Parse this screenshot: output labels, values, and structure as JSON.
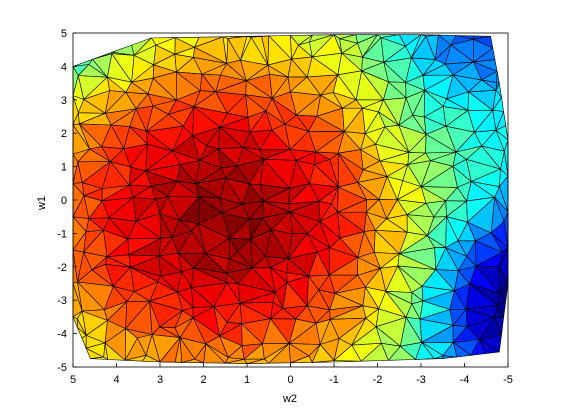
{
  "chart_data": {
    "type": "heatmap",
    "subtype": "triangulated-surface-top-view",
    "title": "",
    "xlabel": "w2",
    "ylabel": "w1",
    "x_reversed": true,
    "xlim": [
      5,
      -5
    ],
    "ylim": [
      -5,
      5
    ],
    "xticks": [
      5,
      4,
      3,
      2,
      1,
      0,
      -1,
      -2,
      -3,
      -4,
      -5
    ],
    "yticks": [
      5,
      4,
      3,
      2,
      1,
      0,
      -1,
      -2,
      -3,
      -4,
      -5
    ],
    "xtick_labels": [
      "5",
      "4",
      "3",
      "2",
      "1",
      "0",
      "-1",
      "-2",
      "-3",
      "-4",
      "-5"
    ],
    "ytick_labels": [
      "5",
      "4",
      "3",
      "2",
      "1",
      "0",
      "-1",
      "-2",
      "-3",
      "-4",
      "-5"
    ],
    "colormap": "jet",
    "grid": false,
    "hull": [
      [
        5,
        4.0
      ],
      [
        3.2,
        4.85
      ],
      [
        1,
        4.9
      ],
      [
        -1,
        4.95
      ],
      [
        -3,
        4.95
      ],
      [
        -4.6,
        4.9
      ],
      [
        -4.8,
        3.5
      ],
      [
        -5,
        1.8
      ],
      [
        -5,
        -2.5
      ],
      [
        -4.8,
        -4.55
      ],
      [
        -3.5,
        -4.75
      ],
      [
        -1,
        -4.85
      ],
      [
        1,
        -4.9
      ],
      [
        3,
        -4.85
      ],
      [
        4.6,
        -4.75
      ],
      [
        5,
        -3.5
      ],
      [
        5,
        0.5
      ]
    ],
    "surface_description": "value high (dark red) in center-left, decreasing toward the right edge (x ≈ -5, y ≈ -3) where it reaches dark blue"
  }
}
